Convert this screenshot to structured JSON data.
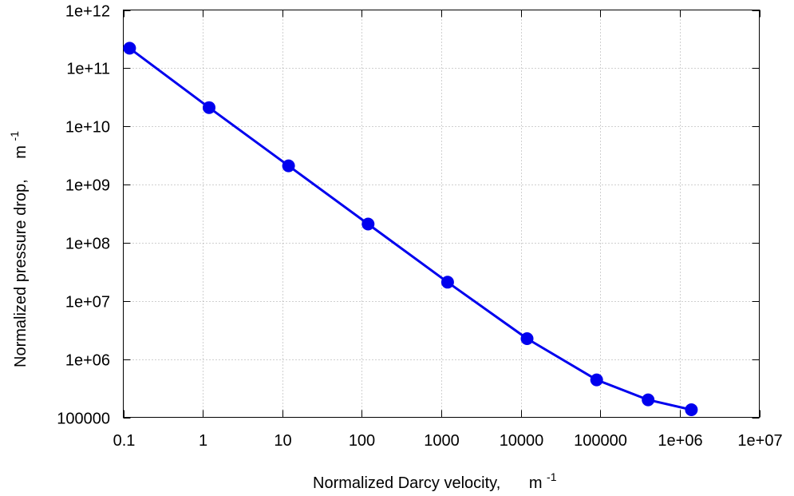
{
  "chart_data": {
    "type": "line",
    "xscale": "log",
    "yscale": "log",
    "xlim": [
      0.1,
      10000000
    ],
    "ylim": [
      100000,
      1000000000000
    ],
    "grid": true,
    "xlabel": "Normalized Darcy velocity,",
    "xlabel_unit": "m",
    "xlabel_unit_exp": "-1",
    "ylabel": "Normalized pressure drop,",
    "ylabel_unit": "m",
    "ylabel_unit_exp": "-1",
    "x_ticks": [
      0.1,
      1,
      10,
      100,
      1000,
      10000,
      100000,
      1000000,
      10000000
    ],
    "x_tick_labels": [
      "0.1",
      "1",
      "10",
      "100",
      "1000",
      "10000",
      "100000",
      "1e+06",
      "1e+07"
    ],
    "y_ticks": [
      100000,
      1000000,
      10000000,
      100000000,
      1000000000,
      10000000000,
      100000000000,
      1000000000000
    ],
    "y_tick_labels": [
      "100000",
      "1e+06",
      "1e+07",
      "1e+08",
      "1e+09",
      "1e+10",
      "1e+11",
      "1e+12"
    ],
    "series": [
      {
        "color": "#0000ee",
        "marker": "circle",
        "x": [
          0.12,
          1.2,
          12,
          120,
          1200,
          12000,
          90000,
          400000,
          1400000
        ],
        "y": [
          220000000000,
          21000000000,
          2100000000,
          210000000,
          21000000,
          2250000,
          440000,
          200000,
          135000
        ]
      }
    ]
  }
}
